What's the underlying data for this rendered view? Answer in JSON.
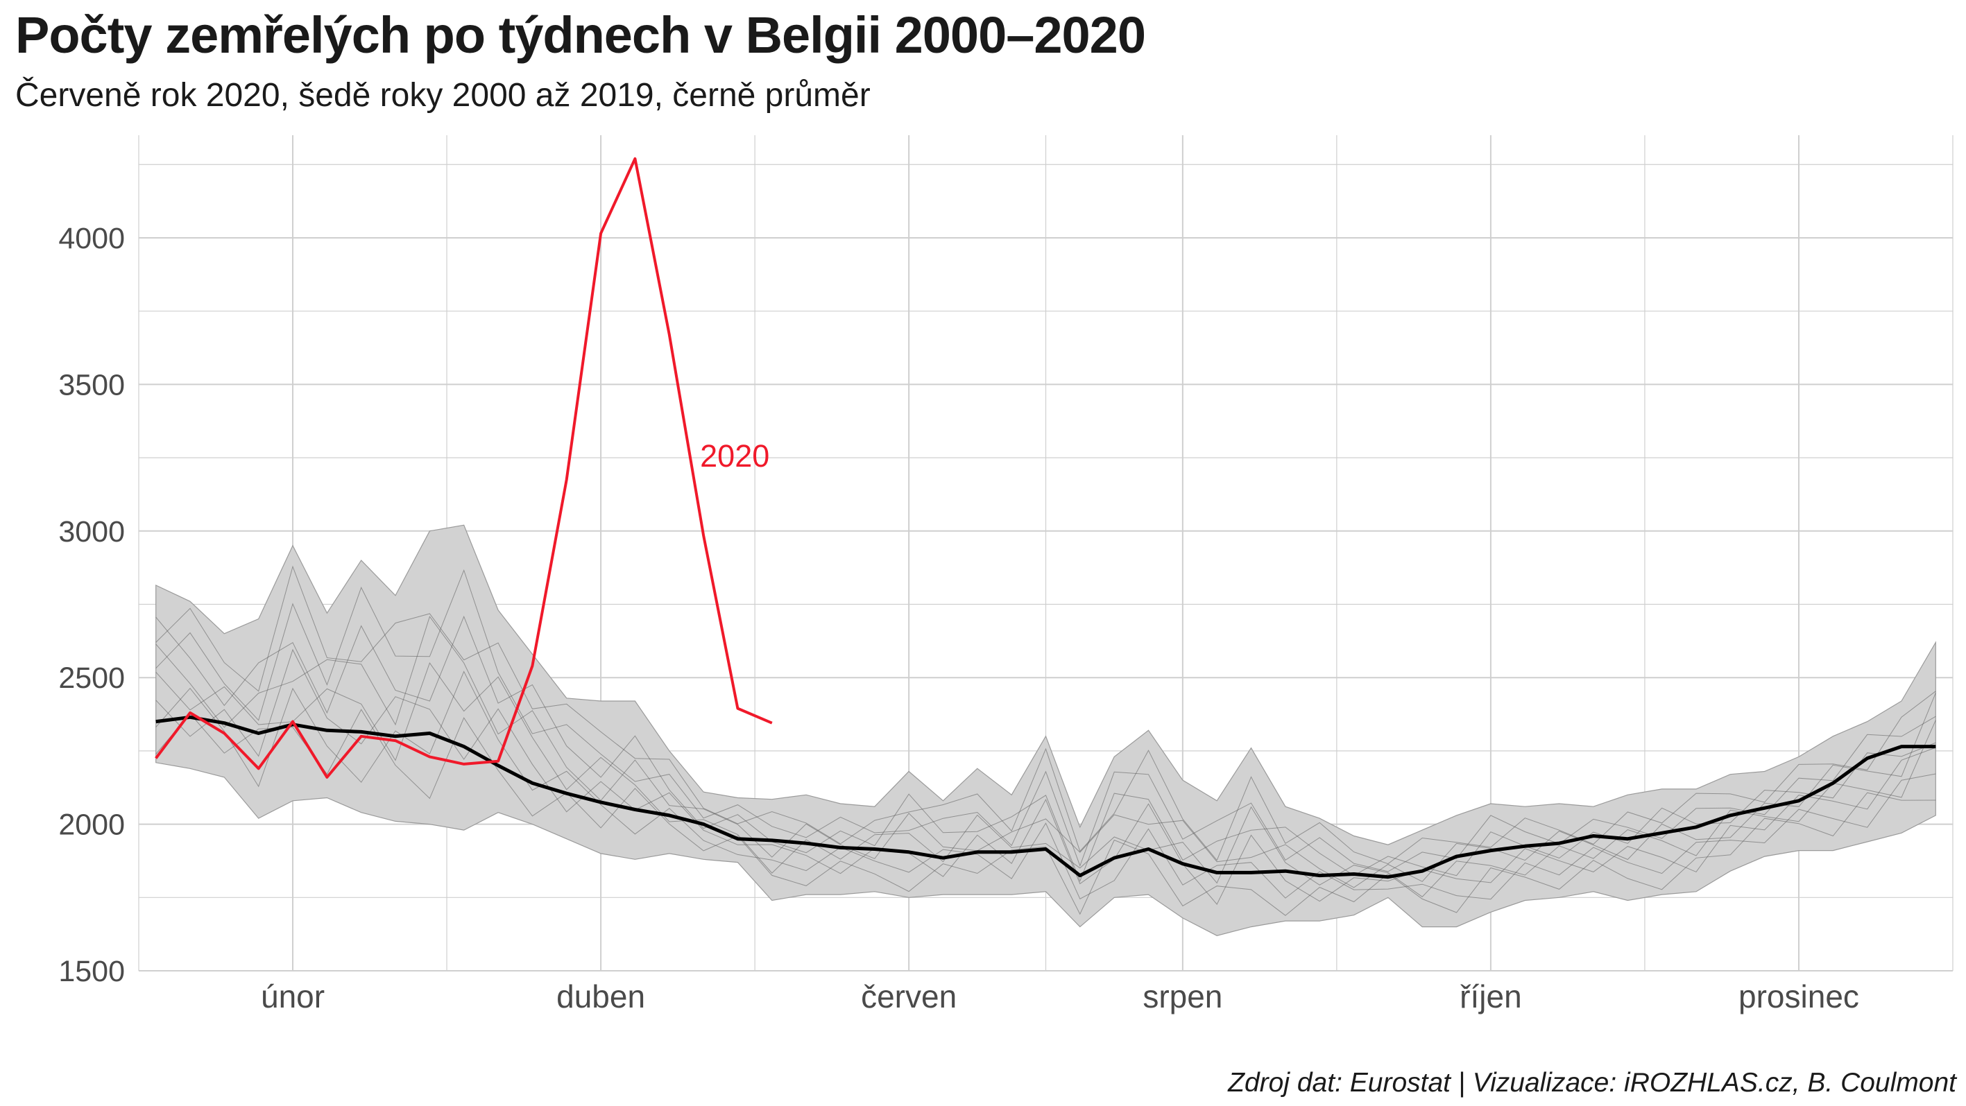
{
  "title": "Počty zemřelých po týdnech v Belgii 2000–2020",
  "subtitle": "Červeně rok 2020, šedě roky 2000 až 2019, černě průměr",
  "caption": "Zdroj dat: Eurostat | Vizualizace: iROZHLAS.cz, B. Coulmont",
  "colors": {
    "highlight": "#f0192a",
    "mean": "#000000",
    "band": "#d2d2d2",
    "background_years": "#5a5a5a",
    "grid": "#cfcfcf"
  },
  "chart_data": {
    "type": "line",
    "xlabel": "",
    "ylabel": "",
    "x_axis": "week of year",
    "xlim": [
      0.5,
      53.5
    ],
    "ylim": [
      1500,
      4350
    ],
    "yticks": [
      1500,
      2000,
      2500,
      3000,
      3500,
      4000
    ],
    "month_labels": [
      {
        "label": "únor",
        "week": 5
      },
      {
        "label": "duben",
        "week": 14
      },
      {
        "label": "červen",
        "week": 23
      },
      {
        "label": "srpen",
        "week": 31
      },
      {
        "label": "říjen",
        "week": 40
      },
      {
        "label": "prosinec",
        "week": 49
      }
    ],
    "grid": true,
    "series_2020": {
      "name": "2020",
      "weeks": [
        1,
        2,
        3,
        4,
        5,
        6,
        7,
        8,
        9,
        10,
        11,
        12,
        13,
        14,
        15,
        16,
        17,
        18,
        19
      ],
      "values": [
        2225,
        2380,
        2310,
        2190,
        2350,
        2160,
        2300,
        2285,
        2230,
        2205,
        2215,
        2540,
        3175,
        4015,
        4270,
        3670,
        2985,
        2395,
        2345
      ]
    },
    "mean": {
      "name": "průměr",
      "weeks": [
        1,
        2,
        3,
        4,
        5,
        6,
        7,
        8,
        9,
        10,
        11,
        12,
        13,
        14,
        15,
        16,
        17,
        18,
        19,
        20,
        21,
        22,
        23,
        24,
        25,
        26,
        27,
        28,
        29,
        30,
        31,
        32,
        33,
        34,
        35,
        36,
        37,
        38,
        39,
        40,
        41,
        42,
        43,
        44,
        45,
        46,
        47,
        48,
        49,
        50,
        51,
        52,
        53
      ],
      "values": [
        2350,
        2365,
        2345,
        2310,
        2340,
        2320,
        2315,
        2300,
        2310,
        2265,
        2200,
        2140,
        2105,
        2075,
        2050,
        2030,
        2000,
        1950,
        1945,
        1935,
        1920,
        1915,
        1905,
        1885,
        1905,
        1905,
        1915,
        1825,
        1885,
        1915,
        1865,
        1835,
        1835,
        1840,
        1825,
        1830,
        1820,
        1840,
        1890,
        1910,
        1925,
        1935,
        1960,
        1950,
        1970,
        1990,
        2030,
        2055,
        2080,
        2140,
        2225,
        2265,
        2265
      ]
    },
    "range_2000_2019": {
      "name": "roky 2000 až 2019",
      "weeks": [
        1,
        2,
        3,
        4,
        5,
        6,
        7,
        8,
        9,
        10,
        11,
        12,
        13,
        14,
        15,
        16,
        17,
        18,
        19,
        20,
        21,
        22,
        23,
        24,
        25,
        26,
        27,
        28,
        29,
        30,
        31,
        32,
        33,
        34,
        35,
        36,
        37,
        38,
        39,
        40,
        41,
        42,
        43,
        44,
        45,
        46,
        47,
        48,
        49,
        50,
        51,
        52,
        53
      ],
      "max": [
        2815,
        2760,
        2650,
        2700,
        2950,
        2720,
        2900,
        2780,
        3000,
        3020,
        2730,
        2580,
        2430,
        2420,
        2420,
        2250,
        2110,
        2090,
        2085,
        2100,
        2070,
        2060,
        2180,
        2080,
        2190,
        2100,
        2300,
        1990,
        2230,
        2320,
        2150,
        2080,
        2260,
        2060,
        2020,
        1960,
        1930,
        1980,
        2030,
        2070,
        2060,
        2070,
        2060,
        2100,
        2120,
        2120,
        2170,
        2180,
        2230,
        2300,
        2350,
        2420,
        2620
      ],
      "min": [
        2210,
        2190,
        2160,
        2020,
        2080,
        2090,
        2040,
        2010,
        2000,
        1980,
        2040,
        2000,
        1950,
        1900,
        1880,
        1900,
        1880,
        1870,
        1740,
        1760,
        1760,
        1770,
        1750,
        1760,
        1760,
        1760,
        1770,
        1650,
        1750,
        1760,
        1680,
        1620,
        1650,
        1670,
        1670,
        1690,
        1750,
        1650,
        1650,
        1700,
        1740,
        1750,
        1770,
        1740,
        1760,
        1770,
        1840,
        1890,
        1910,
        1910,
        1940,
        1970,
        2030
      ]
    }
  }
}
